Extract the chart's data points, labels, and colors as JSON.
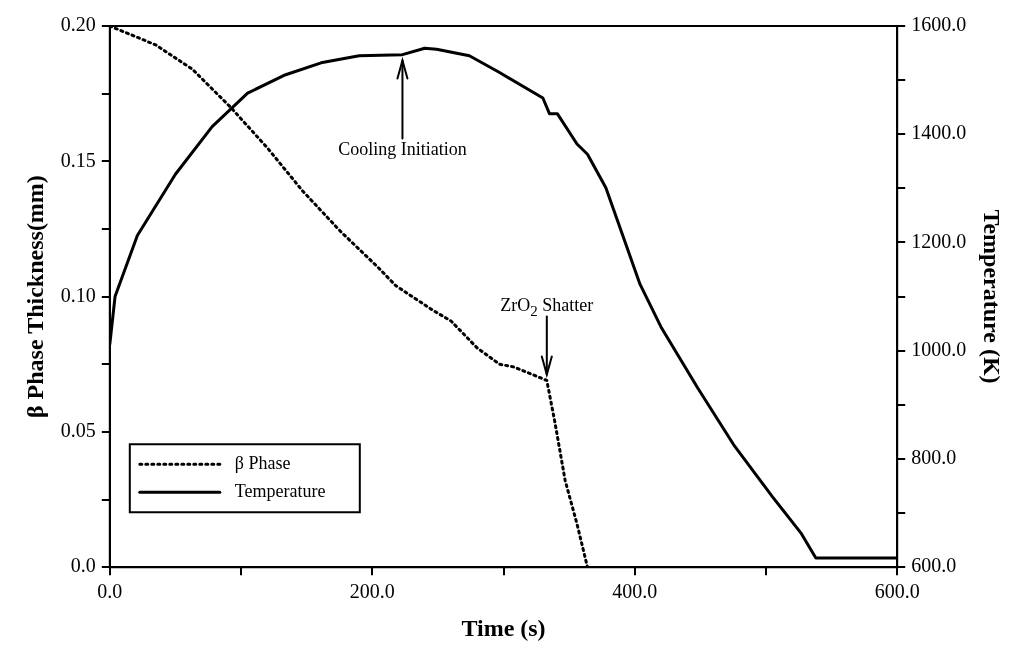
{
  "chart_data": {
    "type": "line",
    "xlabel": "Time (s)",
    "ylabel": "β Phase Thickness(mm)",
    "y2label": "Temperature (K)",
    "legend": "bottom left",
    "xlim": [
      0,
      600
    ],
    "xticks": [
      {
        "value": 0,
        "label": "0.0"
      },
      {
        "value": 100,
        "label": null
      },
      {
        "value": 200,
        "label": "200.0"
      },
      {
        "value": 300,
        "label": null
      },
      {
        "value": 400,
        "label": "400.0"
      },
      {
        "value": 500,
        "label": null
      },
      {
        "value": 600,
        "label": "600.0"
      }
    ],
    "ylim": [
      0,
      0.2
    ],
    "yticks": [
      {
        "value": 0,
        "label": "0.0"
      },
      {
        "value": 0.025,
        "label": null
      },
      {
        "value": 0.05,
        "label": "0.05"
      },
      {
        "value": 0.075,
        "label": null
      },
      {
        "value": 0.1,
        "label": "0.10"
      },
      {
        "value": 0.125,
        "label": null
      },
      {
        "value": 0.15,
        "label": "0.15"
      },
      {
        "value": 0.175,
        "label": null
      },
      {
        "value": 0.2,
        "label": "0.20"
      }
    ],
    "y2lim": [
      600,
      1600
    ],
    "y2ticks": [
      {
        "value": 600,
        "label": "600.0"
      },
      {
        "value": 700,
        "label": null
      },
      {
        "value": 800,
        "label": "800.0"
      },
      {
        "value": 900,
        "label": null
      },
      {
        "value": 1000,
        "label": "1000.0"
      },
      {
        "value": 1100,
        "label": null
      },
      {
        "value": 1200,
        "label": "1200.0"
      },
      {
        "value": 1300,
        "label": null
      },
      {
        "value": 1400,
        "label": "1400.0"
      },
      {
        "value": 1500,
        "label": null
      },
      {
        "value": 1600,
        "label": "1600.0"
      }
    ],
    "series": [
      {
        "name": "β Phase",
        "color": "#000000",
        "line_style": "dotted",
        "x": [
          0,
          35,
          63,
          92,
          120,
          147,
          176,
          204,
          218,
          246,
          260,
          280,
          297,
          308,
          333,
          339,
          347,
          356,
          364
        ],
        "values": [
          0.2,
          0.193,
          0.184,
          0.17,
          0.155,
          0.139,
          0.124,
          0.111,
          0.104,
          0.095,
          0.091,
          0.081,
          0.075,
          0.074,
          0.069,
          0.054,
          0.032,
          0.016,
          0.0
        ]
      },
      {
        "name": "Temperature",
        "color": "#000000",
        "line_style": "solid",
        "axis": "y2",
        "x": [
          0,
          4,
          21,
          50,
          78,
          105,
          134,
          161,
          190,
          223,
          240,
          249,
          274,
          297,
          330,
          335,
          341,
          356,
          364,
          378,
          404,
          420,
          448,
          476,
          505,
          527,
          538,
          600
        ],
        "values": [
          1012,
          1100,
          1213,
          1326,
          1414,
          1476,
          1510,
          1532,
          1545,
          1547,
          1559,
          1557,
          1545,
          1514,
          1467,
          1438,
          1438,
          1382,
          1363,
          1301,
          1123,
          1044,
          931,
          824,
          730,
          662,
          617,
          617
        ]
      }
    ],
    "annotations": [
      {
        "text": "Cooling Initiation",
        "x": 223,
        "y": 0.1895
      },
      {
        "text": "ZrO$_{2}$ Shatter",
        "x": 333,
        "y": 0.069
      }
    ]
  }
}
